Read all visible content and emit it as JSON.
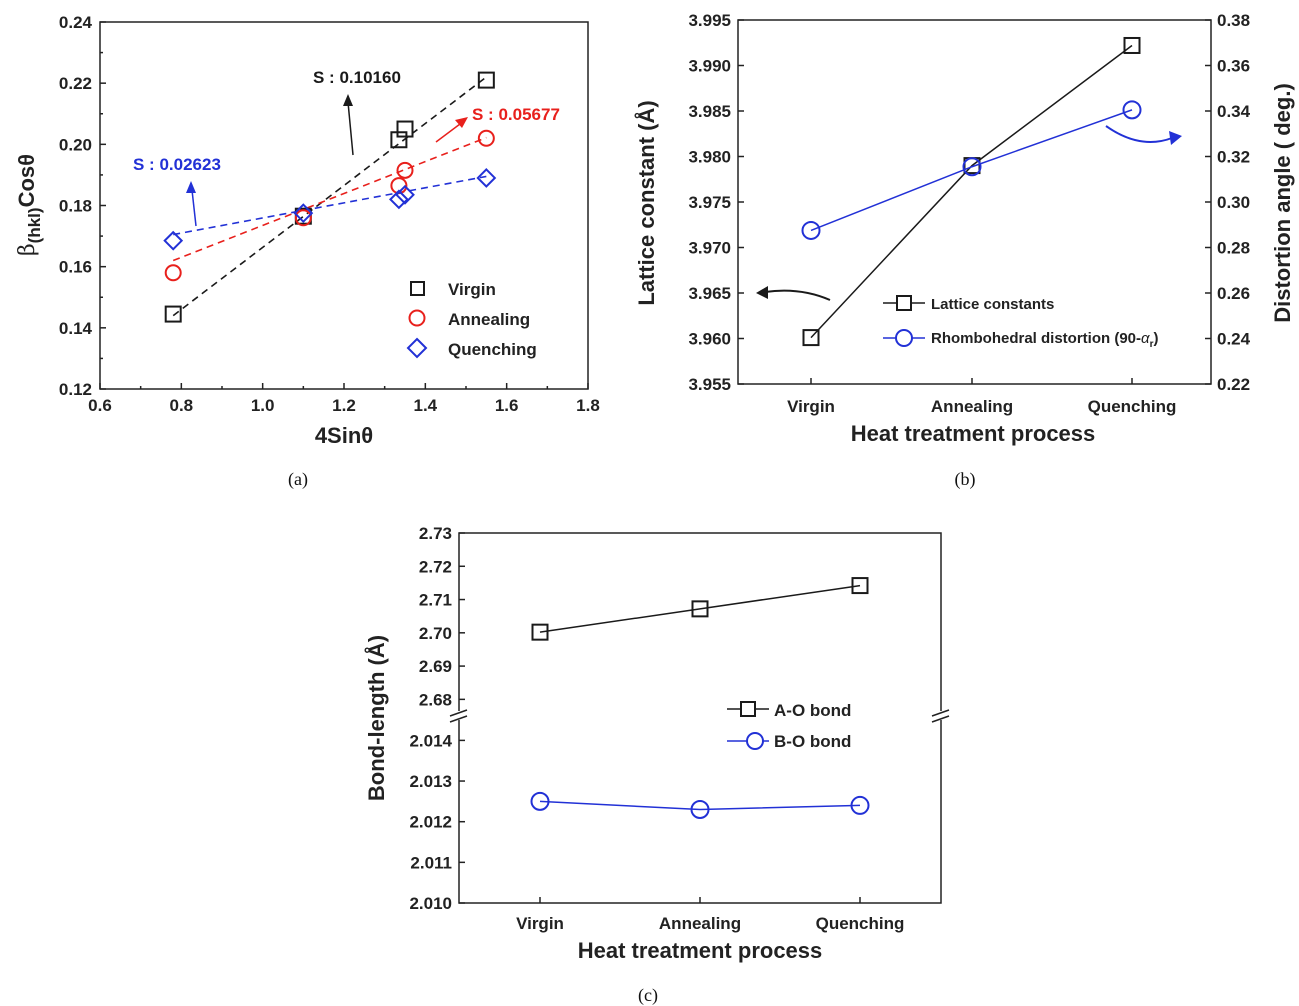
{
  "colors": {
    "black": "#1a1a1a",
    "red": "#e8201c",
    "blue": "#2231d6"
  },
  "panel_a": {
    "caption": "(a)",
    "xlabel": "4Sinθ",
    "ylabel_main": "β",
    "ylabel_sub": "(hkl)",
    "ylabel_end": "Cosθ",
    "x_ticks": [
      "0.6",
      "0.8",
      "1.0",
      "1.2",
      "1.4",
      "1.6",
      "1.8"
    ],
    "y_ticks": [
      "0.12",
      "0.14",
      "0.16",
      "0.18",
      "0.20",
      "0.22",
      "0.24"
    ],
    "annotations": [
      {
        "text": "S : 0.10160",
        "color": "black"
      },
      {
        "text": "S : 0.05677",
        "color": "red"
      },
      {
        "text": "S : 0.02623",
        "color": "blue"
      }
    ],
    "legend": [
      "Virgin",
      "Annealing",
      "Quenching"
    ]
  },
  "panel_b": {
    "caption": "(b)",
    "xlabel": "Heat treatment process",
    "ylabel_left": "Lattice constant (Å)",
    "ylabel_right": "Distortion angle ( deg.)",
    "categories": [
      "Virgin",
      "Annealing",
      "Quenching"
    ],
    "left_ticks": [
      "3.955",
      "3.960",
      "3.965",
      "3.970",
      "3.975",
      "3.980",
      "3.985",
      "3.990",
      "3.995"
    ],
    "right_ticks": [
      "0.22",
      "0.24",
      "0.26",
      "0.28",
      "0.30",
      "0.32",
      "0.34",
      "0.36",
      "0.38"
    ],
    "legend": [
      "Lattice constants",
      "Rhombohedral distortion (90-"
    ],
    "legend_alpha": "α",
    "legend_alpha_sub": "r",
    "legend_close": ")"
  },
  "panel_c": {
    "caption": "(c)",
    "xlabel": "Heat treatment process",
    "ylabel": "Bond-length (Å)",
    "categories": [
      "Virgin",
      "Annealing",
      "Quenching"
    ],
    "upper_ticks": [
      "2.68",
      "2.69",
      "2.70",
      "2.71",
      "2.72",
      "2.73"
    ],
    "lower_ticks": [
      "2.010",
      "2.011",
      "2.012",
      "2.013",
      "2.014"
    ],
    "legend": [
      "A-O bond",
      "B-O bond"
    ]
  },
  "chart_data": [
    {
      "type": "scatter",
      "xlabel": "4Sinθ",
      "ylabel": "β(hkl)Cosθ",
      "xlim": [
        0.6,
        1.8
      ],
      "ylim": [
        0.12,
        0.24
      ],
      "series": [
        {
          "name": "Virgin",
          "color": "black",
          "marker": "square",
          "points": [
            [
              0.78,
              0.1445
            ],
            [
              1.1,
              0.1765
            ],
            [
              1.335,
              0.2015
            ],
            [
              1.35,
              0.205
            ],
            [
              1.55,
              0.221
            ]
          ],
          "fit": [
            [
              0.78,
              0.144
            ],
            [
              1.55,
              0.222
            ]
          ]
        },
        {
          "name": "Annealing",
          "color": "red",
          "marker": "circle",
          "points": [
            [
              0.78,
              0.158
            ],
            [
              1.1,
              0.176
            ],
            [
              1.335,
              0.1865
            ],
            [
              1.35,
              0.1915
            ],
            [
              1.55,
              0.202
            ]
          ],
          "fit": [
            [
              0.78,
              0.162
            ],
            [
              1.55,
              0.2022
            ]
          ]
        },
        {
          "name": "Quenching",
          "color": "blue",
          "marker": "diamond",
          "points": [
            [
              0.78,
              0.1685
            ],
            [
              1.1,
              0.1775
            ],
            [
              1.335,
              0.182
            ],
            [
              1.35,
              0.1835
            ],
            [
              1.55,
              0.189
            ]
          ],
          "fit": [
            [
              0.78,
              0.1705
            ],
            [
              1.55,
              0.1895
            ]
          ]
        }
      ]
    },
    {
      "type": "line",
      "categories": [
        "Virgin",
        "Annealing",
        "Quenching"
      ],
      "xlabel": "Heat treatment process",
      "ylabel_left": "Lattice constant (Å)",
      "ylabel_right": "Distortion angle ( deg.)",
      "ylim_left": [
        3.955,
        3.995
      ],
      "ylim_right": [
        0.22,
        0.38
      ],
      "series": [
        {
          "name": "Lattice constants",
          "axis": "left",
          "color": "black",
          "marker": "square",
          "values": [
            3.9601,
            3.979,
            3.9922
          ]
        },
        {
          "name": "Rhombohedral distortion (90-αr)",
          "axis": "right",
          "color": "blue",
          "marker": "circle",
          "values": [
            0.2875,
            0.3155,
            0.3405
          ]
        }
      ]
    },
    {
      "type": "line",
      "categories": [
        "Virgin",
        "Annealing",
        "Quenching"
      ],
      "xlabel": "Heat treatment process",
      "ylabel": "Bond-length (Å)",
      "ylim_upper": [
        2.675,
        2.73
      ],
      "ylim_lower": [
        2.01,
        2.0146
      ],
      "series": [
        {
          "name": "A-O bond",
          "color": "black",
          "marker": "square",
          "values": [
            2.7002,
            2.7072,
            2.7142
          ]
        },
        {
          "name": "B-O bond",
          "color": "blue",
          "marker": "circle",
          "values": [
            2.0125,
            2.0123,
            2.0124
          ]
        }
      ]
    }
  ]
}
